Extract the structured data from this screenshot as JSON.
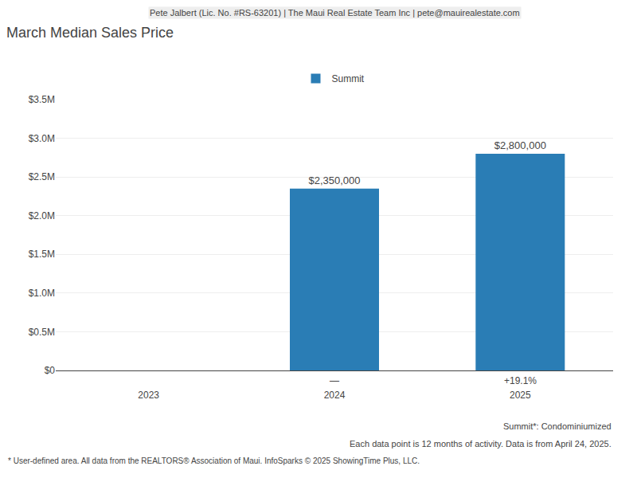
{
  "chart_data": {
    "type": "bar",
    "title": "March Median Sales Price",
    "categories": [
      "2023",
      "2024",
      "2025"
    ],
    "series": [
      {
        "name": "Summit",
        "color": "#2a7db5",
        "values": [
          null,
          2350000,
          2800000
        ],
        "value_labels": [
          null,
          "$2,350,000",
          "$2,800,000"
        ]
      }
    ],
    "data_labels": true,
    "ylim": [
      0,
      3500000
    ],
    "yticks": [
      {
        "value": 0,
        "label": "$0"
      },
      {
        "value": 500000,
        "label": "$0.5M"
      },
      {
        "value": 1000000,
        "label": "$1.0M"
      },
      {
        "value": 1500000,
        "label": "$1.5M"
      },
      {
        "value": 2000000,
        "label": "$2.0M"
      },
      {
        "value": 2500000,
        "label": "$2.5M"
      },
      {
        "value": 3000000,
        "label": "$3.0M"
      },
      {
        "value": 3500000,
        "label": "$3.5M"
      }
    ],
    "grid": true,
    "annotations": [
      {
        "text": "Pete Jalbert (Lic. No. #RS-63201) | The Maui Real Estate Team Inc | pete@mauirealestate.com"
      },
      {
        "text": "—",
        "x": "2024"
      },
      {
        "text": "+19.1%",
        "x": "2025"
      },
      {
        "text": "Summit*: Condominiumized"
      },
      {
        "text": "Each data point is 12 months of activity. Data is from April 24, 2025."
      },
      {
        "text": "* User-defined area. All data from the REALTORS® Association of Maui. InfoSparks © 2025 ShowingTime Plus, LLC."
      }
    ]
  }
}
